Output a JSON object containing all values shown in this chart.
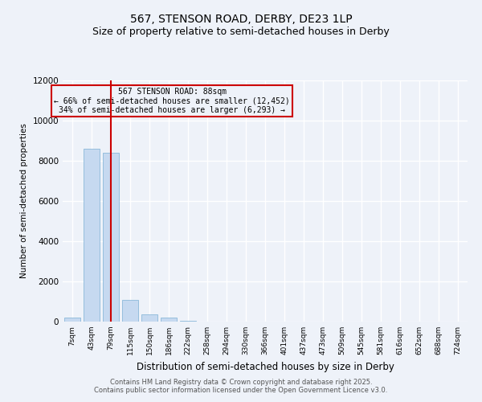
{
  "title_line1": "567, STENSON ROAD, DERBY, DE23 1LP",
  "title_line2": "Size of property relative to semi-detached houses in Derby",
  "xlabel": "Distribution of semi-detached houses by size in Derby",
  "ylabel": "Number of semi-detached properties",
  "bin_labels": [
    "7sqm",
    "43sqm",
    "79sqm",
    "115sqm",
    "150sqm",
    "186sqm",
    "222sqm",
    "258sqm",
    "294sqm",
    "330sqm",
    "366sqm",
    "401sqm",
    "437sqm",
    "473sqm",
    "509sqm",
    "545sqm",
    "581sqm",
    "616sqm",
    "652sqm",
    "688sqm",
    "724sqm"
  ],
  "bin_values": [
    200,
    8600,
    8400,
    1100,
    350,
    200,
    50,
    20,
    10,
    5,
    3,
    2,
    1,
    1,
    0,
    0,
    0,
    0,
    0,
    0,
    0
  ],
  "bar_color": "#c6d9f0",
  "bar_edge_color": "#7bafd4",
  "property_line_x": 2.0,
  "annotation_line1": "567 STENSON ROAD: 88sqm",
  "annotation_line2": "← 66% of semi-detached houses are smaller (12,452)",
  "annotation_line3": "34% of semi-detached houses are larger (6,293) →",
  "vline_color": "#cc0000",
  "ylim": [
    0,
    12000
  ],
  "yticks": [
    0,
    2000,
    4000,
    6000,
    8000,
    10000,
    12000
  ],
  "footer_line1": "Contains HM Land Registry data © Crown copyright and database right 2025.",
  "footer_line2": "Contains public sector information licensed under the Open Government Licence v3.0.",
  "bg_color": "#eef2f9",
  "grid_color": "#ffffff",
  "title_fontsize": 10,
  "subtitle_fontsize": 9
}
